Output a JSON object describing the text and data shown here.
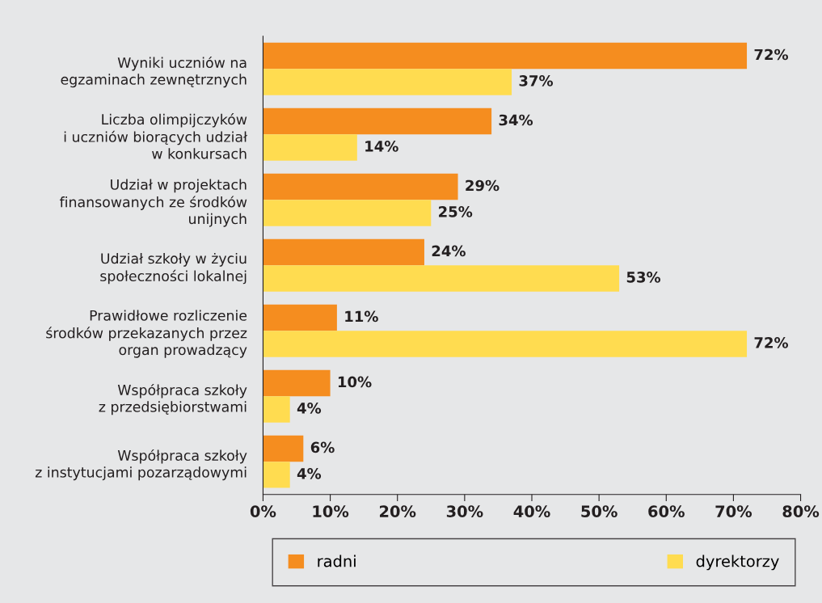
{
  "chart_data": {
    "type": "bar",
    "orientation": "horizontal",
    "categories": [
      "Wyniki uczniów na\negzaminach zewnętrznych",
      "Liczba olimpijczyków\ni uczniów biorących udział\nw konkursach",
      "Udział w projektach\nfinansowanych ze środków\nunijnych",
      "Udział szkoły w życiu\nspołeczności lokalnej",
      "Prawidłowe rozliczenie\nśrodków przekazanych przez\norgan prowadzący",
      "Współpraca szkoły\nz przedsiębiorstwami",
      "Współpraca szkoły\nz instytucjami pozarządowymi"
    ],
    "series": [
      {
        "name": "radni",
        "color": "#f58d1f",
        "values": [
          72,
          34,
          29,
          24,
          11,
          10,
          6
        ],
        "value_labels": [
          "72%",
          "34%",
          "29%",
          "24%",
          "11%",
          "10%",
          "6%"
        ]
      },
      {
        "name": "dyrektorzy",
        "color": "#ffdc50",
        "values": [
          37,
          14,
          25,
          53,
          72,
          4,
          4
        ],
        "value_labels": [
          "37%",
          "14%",
          "25%",
          "53%",
          "72%",
          "4%",
          "4%"
        ]
      }
    ],
    "xlim": [
      0,
      80
    ],
    "xticks": [
      {
        "value": 0,
        "label": "0%"
      },
      {
        "value": 10,
        "label": "10%"
      },
      {
        "value": 20,
        "label": "20%"
      },
      {
        "value": 30,
        "label": "30%"
      },
      {
        "value": 40,
        "label": "40%"
      },
      {
        "value": 50,
        "label": "50%"
      },
      {
        "value": 60,
        "label": "60%"
      },
      {
        "value": 70,
        "label": "70%"
      },
      {
        "value": 80,
        "label": "80%"
      }
    ],
    "grid": false,
    "legend": "bottom"
  }
}
